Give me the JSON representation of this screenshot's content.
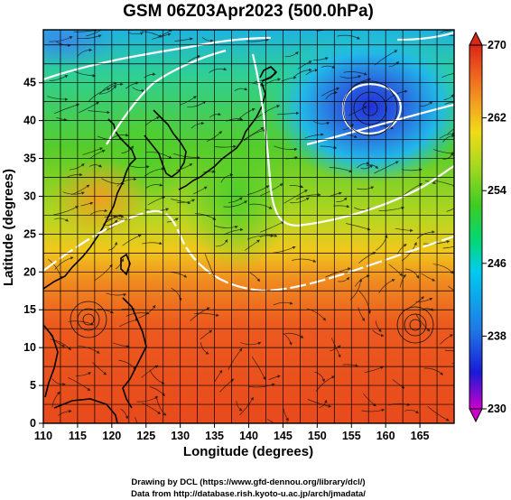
{
  "title": "GSM 06Z03Apr2023 (500.0hPa)",
  "map": {
    "x_axis_label": "Longitude (degrees)",
    "y_axis_label": "Latitude  (degrees)",
    "lon_ticks": [
      "110",
      "115",
      "120",
      "125",
      "130",
      "135",
      "140",
      "145",
      "150",
      "155",
      "160",
      "165"
    ],
    "lat_ticks": [
      "0",
      "5",
      "10",
      "15",
      "20",
      "25",
      "30",
      "35",
      "40",
      "45"
    ],
    "lon_range": [
      110,
      170
    ],
    "lat_range": [
      0,
      52
    ]
  },
  "colorbar": {
    "labels": [
      "270",
      "262",
      "254",
      "246",
      "238",
      "230"
    ],
    "range": [
      230,
      270
    ],
    "colors": [
      "#cc00cc",
      "#1a1ad8",
      "#1f7ae6",
      "#00ccee",
      "#00d877",
      "#3ecc22",
      "#a8d820",
      "#f0dc18",
      "#f2a020",
      "#ee5a1e",
      "#d82818"
    ]
  },
  "credits": {
    "line1": "Drawing by DCL (https://www.gfd-dennou.org/library/dcl/)",
    "line2": "Data from http://database.rish.kyoto-u.ac.jp/arch/jmadata/"
  }
}
